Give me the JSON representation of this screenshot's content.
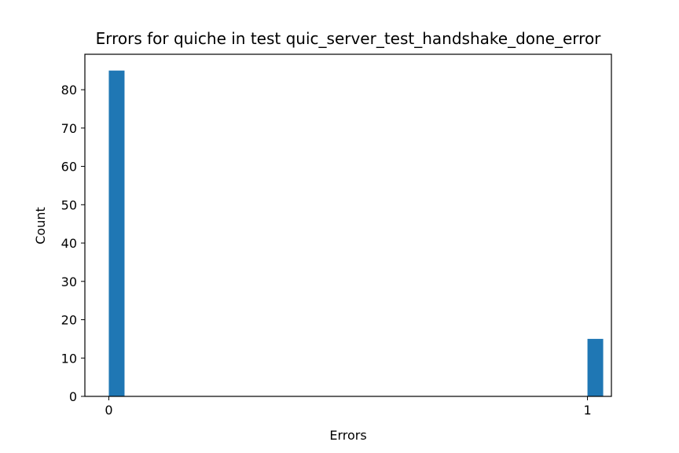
{
  "chart_data": {
    "type": "bar",
    "title": "Errors for quiche in test quic_server_test_handshake_done_error",
    "xlabel": "Errors",
    "ylabel": "Count",
    "x": [
      0,
      1
    ],
    "values": [
      85,
      15
    ],
    "xticks": [
      "0",
      "1"
    ],
    "yticks": [
      "0",
      "10",
      "20",
      "30",
      "40",
      "50",
      "60",
      "70",
      "80"
    ],
    "xlim": [
      -0.05,
      1.05
    ],
    "ylim": [
      0,
      89.25
    ],
    "bar_color": "#1f77b4",
    "grid": false,
    "legend": "none"
  }
}
